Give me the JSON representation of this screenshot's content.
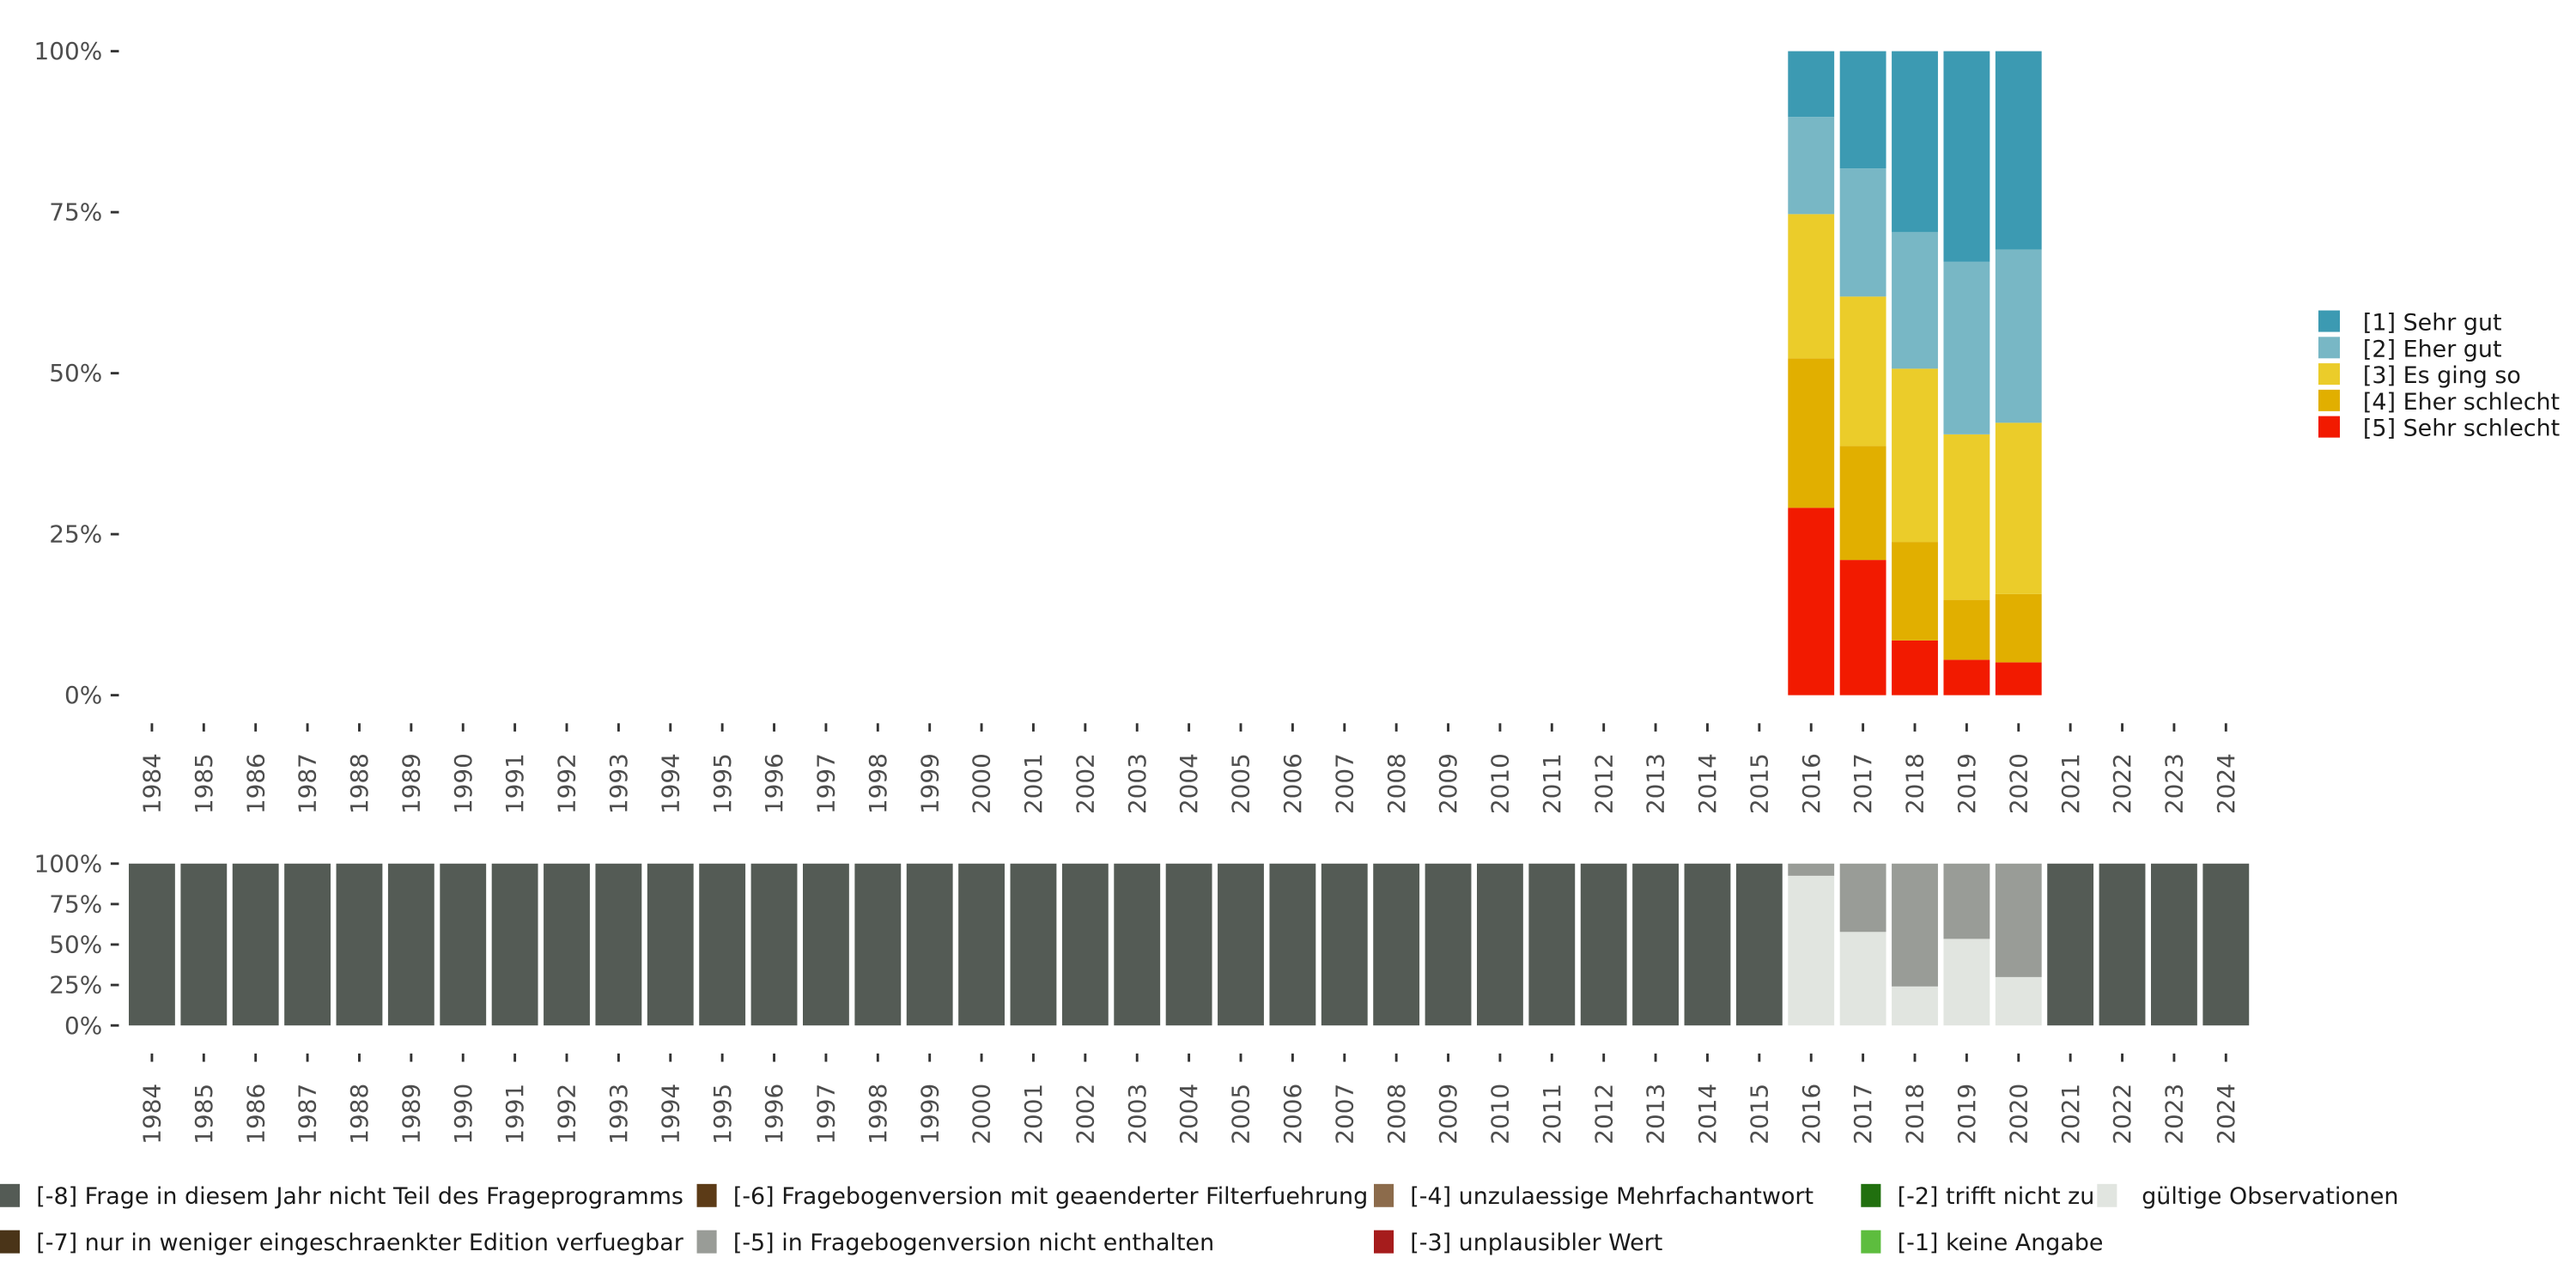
{
  "chart_data": [
    {
      "type": "bar",
      "stacked": true,
      "title": "",
      "xlabel": "",
      "ylabel": "",
      "ylim": [
        0,
        100
      ],
      "y_ticks": [
        "0%",
        "25%",
        "50%",
        "75%",
        "100%"
      ],
      "categories": [
        "1984",
        "1985",
        "1986",
        "1987",
        "1988",
        "1989",
        "1990",
        "1991",
        "1992",
        "1993",
        "1994",
        "1995",
        "1996",
        "1997",
        "1998",
        "1999",
        "2000",
        "2001",
        "2002",
        "2003",
        "2004",
        "2005",
        "2006",
        "2007",
        "2008",
        "2009",
        "2010",
        "2011",
        "2012",
        "2013",
        "2014",
        "2015",
        "2016",
        "2017",
        "2018",
        "2019",
        "2020",
        "2021",
        "2022",
        "2023",
        "2024"
      ],
      "legend_position": "right",
      "series": [
        {
          "name": "[5] Sehr schlecht",
          "color": "#F21A00",
          "values": {
            "2016": 29.1,
            "2017": 21.0,
            "2018": 8.5,
            "2019": 5.5,
            "2020": 5.1
          }
        },
        {
          "name": "[4] Eher schlecht",
          "color": "#E1AF00",
          "values": {
            "2016": 23.2,
            "2017": 17.7,
            "2018": 15.3,
            "2019": 9.3,
            "2020": 10.6
          }
        },
        {
          "name": "[3] Es ging so",
          "color": "#EBCC2A",
          "values": {
            "2016": 22.4,
            "2017": 23.2,
            "2018": 26.9,
            "2019": 25.7,
            "2020": 26.6
          }
        },
        {
          "name": "[2] Eher gut",
          "color": "#78B7C5",
          "values": {
            "2016": 15.1,
            "2017": 19.9,
            "2018": 21.2,
            "2019": 26.8,
            "2020": 26.9
          }
        },
        {
          "name": "[1] Sehr gut",
          "color": "#3C9AB2",
          "values": {
            "2016": 10.2,
            "2017": 18.2,
            "2018": 28.1,
            "2019": 32.7,
            "2020": 30.8
          }
        }
      ],
      "legend_order": [
        "[1] Sehr gut",
        "[2] Eher gut",
        "[3] Es ging so",
        "[4] Eher schlecht",
        "[5] Sehr schlecht"
      ]
    },
    {
      "type": "bar",
      "stacked": true,
      "title": "",
      "ylim": [
        0,
        100
      ],
      "y_ticks": [
        "0%",
        "25%",
        "50%",
        "75%",
        "100%"
      ],
      "categories": [
        "1984",
        "1985",
        "1986",
        "1987",
        "1988",
        "1989",
        "1990",
        "1991",
        "1992",
        "1993",
        "1994",
        "1995",
        "1996",
        "1997",
        "1998",
        "1999",
        "2000",
        "2001",
        "2002",
        "2003",
        "2004",
        "2005",
        "2006",
        "2007",
        "2008",
        "2009",
        "2010",
        "2011",
        "2012",
        "2013",
        "2014",
        "2015",
        "2016",
        "2017",
        "2018",
        "2019",
        "2020",
        "2021",
        "2022",
        "2023",
        "2024"
      ],
      "legend_position": "bottom",
      "series": [
        {
          "name": "gültige Observationen",
          "color": "#E1E5E0",
          "values": {
            "2016": 92.5,
            "2017": 57.8,
            "2018": 24.1,
            "2019": 53.5,
            "2020": 29.9
          }
        },
        {
          "name": "[-5] in Fragebogenversion nicht enthalten",
          "color": "#999C97",
          "values": {
            "2016": 7.5,
            "2017": 42.2,
            "2018": 75.9,
            "2019": 46.5,
            "2020": 70.1
          }
        },
        {
          "name": "[-8] Frage in diesem Jahr nicht Teil des Frageprogramms",
          "color": "#545B55",
          "values": {
            "1984": 100,
            "1985": 100,
            "1986": 100,
            "1987": 100,
            "1988": 100,
            "1989": 100,
            "1990": 100,
            "1991": 100,
            "1992": 100,
            "1993": 100,
            "1994": 100,
            "1995": 100,
            "1996": 100,
            "1997": 100,
            "1998": 100,
            "1999": 100,
            "2000": 100,
            "2001": 100,
            "2002": 100,
            "2003": 100,
            "2004": 100,
            "2005": 100,
            "2006": 100,
            "2007": 100,
            "2008": 100,
            "2009": 100,
            "2010": 100,
            "2011": 100,
            "2012": 100,
            "2013": 100,
            "2014": 100,
            "2015": 100,
            "2021": 100,
            "2022": 100,
            "2023": 100,
            "2024": 100
          }
        }
      ],
      "legend": [
        {
          "name": "[-8] Frage in diesem Jahr nicht Teil des Frageprogramms",
          "color": "#545B55"
        },
        {
          "name": "[-7] nur in weniger eingeschraenkter Edition verfuegbar",
          "color": "#4A3418"
        },
        {
          "name": "[-6] Fragebogenversion mit geaenderter Filterfuehrung",
          "color": "#5C3B17"
        },
        {
          "name": "[-5] in Fragebogenversion nicht enthalten",
          "color": "#999C97"
        },
        {
          "name": "[-4] unzulaessige Mehrfachantwort",
          "color": "#8C6B4B"
        },
        {
          "name": "[-3] unplausibler Wert",
          "color": "#A61C1C"
        },
        {
          "name": "[-2] trifft nicht zu",
          "color": "#21700F"
        },
        {
          "name": "[-1] keine Angabe",
          "color": "#5DBD3E"
        },
        {
          "name": "gültige Observationen",
          "color": "#E1E5E0"
        }
      ]
    }
  ]
}
